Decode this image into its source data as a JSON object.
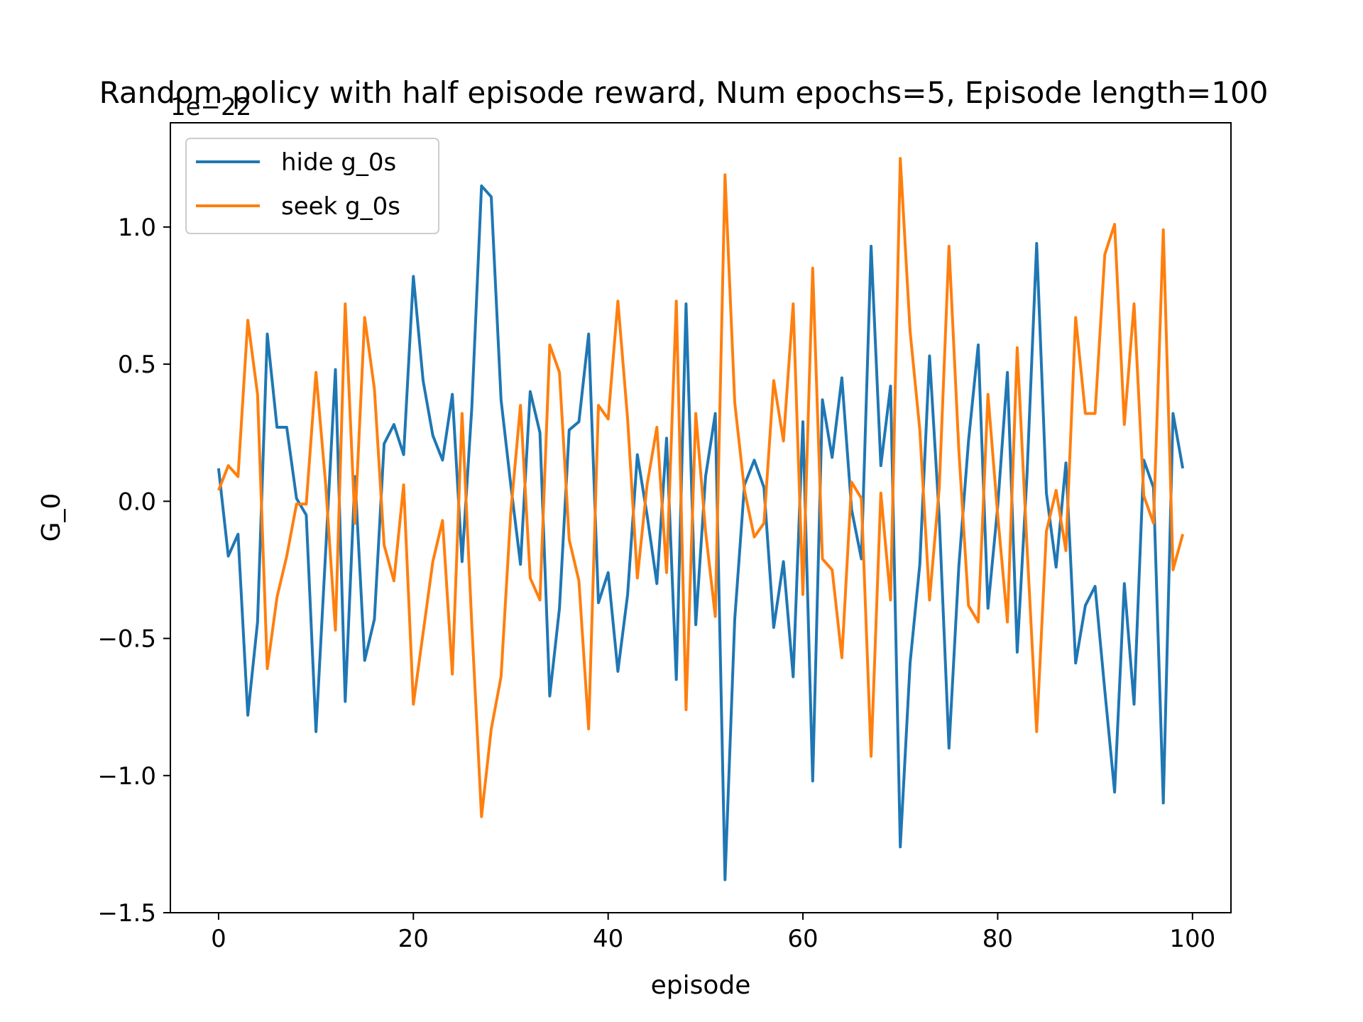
{
  "chart_data": {
    "type": "line",
    "title": "Random policy with half episode reward, Num epochs=5, Episode length=100",
    "xlabel": "episode",
    "ylabel": "G_0",
    "y_offset_label": "1e−22",
    "xlim": [
      -4.95,
      103.95
    ],
    "ylim": [
      -1.5,
      1.38
    ],
    "xticks": [
      0,
      20,
      40,
      60,
      80,
      100
    ],
    "xtick_labels": [
      "0",
      "20",
      "40",
      "60",
      "80",
      "100"
    ],
    "yticks": [
      -1.5,
      -1.0,
      -0.5,
      0.0,
      0.5,
      1.0
    ],
    "ytick_labels": [
      "−1.5",
      "−1.0",
      "−0.5",
      "0.0",
      "0.5",
      "1.0"
    ],
    "grid": false,
    "legend_position": "upper-left",
    "series": [
      {
        "name": "hide g_0s",
        "color": "#1f77b4",
        "values": [
          0.12,
          -0.2,
          -0.12,
          -0.78,
          -0.44,
          0.61,
          0.27,
          0.27,
          0.01,
          -0.05,
          -0.84,
          -0.18,
          0.48,
          -0.73,
          0.09,
          -0.58,
          -0.43,
          0.21,
          0.28,
          0.17,
          0.82,
          0.44,
          0.24,
          0.15,
          0.39,
          -0.22,
          0.34,
          1.15,
          1.11,
          0.37,
          0.06,
          -0.23,
          0.4,
          0.25,
          -0.71,
          -0.39,
          0.26,
          0.29,
          0.61,
          -0.37,
          -0.26,
          -0.62,
          -0.34,
          0.17,
          -0.05,
          -0.3,
          0.23,
          -0.65,
          0.72,
          -0.45,
          0.09,
          0.32,
          -1.38,
          -0.43,
          0.06,
          0.15,
          0.05,
          -0.46,
          -0.22,
          -0.64,
          0.29,
          -1.02,
          0.37,
          0.16,
          0.45,
          -0.03,
          -0.21,
          0.93,
          0.13,
          0.42,
          -1.26,
          -0.59,
          -0.23,
          0.53,
          -0.06,
          -0.9,
          -0.24,
          0.22,
          0.57,
          -0.39,
          -0.02,
          0.47,
          -0.55,
          0.09,
          0.94,
          0.03,
          -0.24,
          0.14,
          -0.59,
          -0.38,
          -0.31,
          -0.69,
          -1.06,
          -0.3,
          -0.74,
          0.15,
          0.05,
          -1.1,
          0.32,
          0.12
        ]
      },
      {
        "name": "seek g_0s",
        "color": "#ff7f0e",
        "values": [
          0.04,
          0.13,
          0.09,
          0.66,
          0.39,
          -0.61,
          -0.35,
          -0.2,
          -0.01,
          -0.01,
          0.47,
          0.06,
          -0.47,
          0.72,
          -0.08,
          0.67,
          0.41,
          -0.16,
          -0.29,
          0.06,
          -0.74,
          -0.48,
          -0.22,
          -0.07,
          -0.63,
          0.32,
          -0.45,
          -1.15,
          -0.83,
          -0.64,
          -0.04,
          0.35,
          -0.28,
          -0.36,
          0.57,
          0.47,
          -0.14,
          -0.29,
          -0.83,
          0.35,
          0.3,
          0.73,
          0.3,
          -0.28,
          0.06,
          0.27,
          -0.26,
          0.73,
          -0.76,
          0.32,
          -0.11,
          -0.42,
          1.19,
          0.36,
          0.04,
          -0.13,
          -0.08,
          0.44,
          0.22,
          0.72,
          -0.34,
          0.85,
          -0.21,
          -0.25,
          -0.57,
          0.07,
          0.01,
          -0.93,
          0.03,
          -0.36,
          1.25,
          0.62,
          0.26,
          -0.36,
          0.05,
          0.93,
          0.19,
          -0.38,
          -0.44,
          0.39,
          -0.05,
          -0.44,
          0.56,
          -0.16,
          -0.84,
          -0.11,
          0.04,
          -0.18,
          0.67,
          0.32,
          0.32,
          0.9,
          1.01,
          0.28,
          0.72,
          0.02,
          -0.08,
          0.99,
          -0.25,
          -0.12
        ]
      }
    ]
  }
}
